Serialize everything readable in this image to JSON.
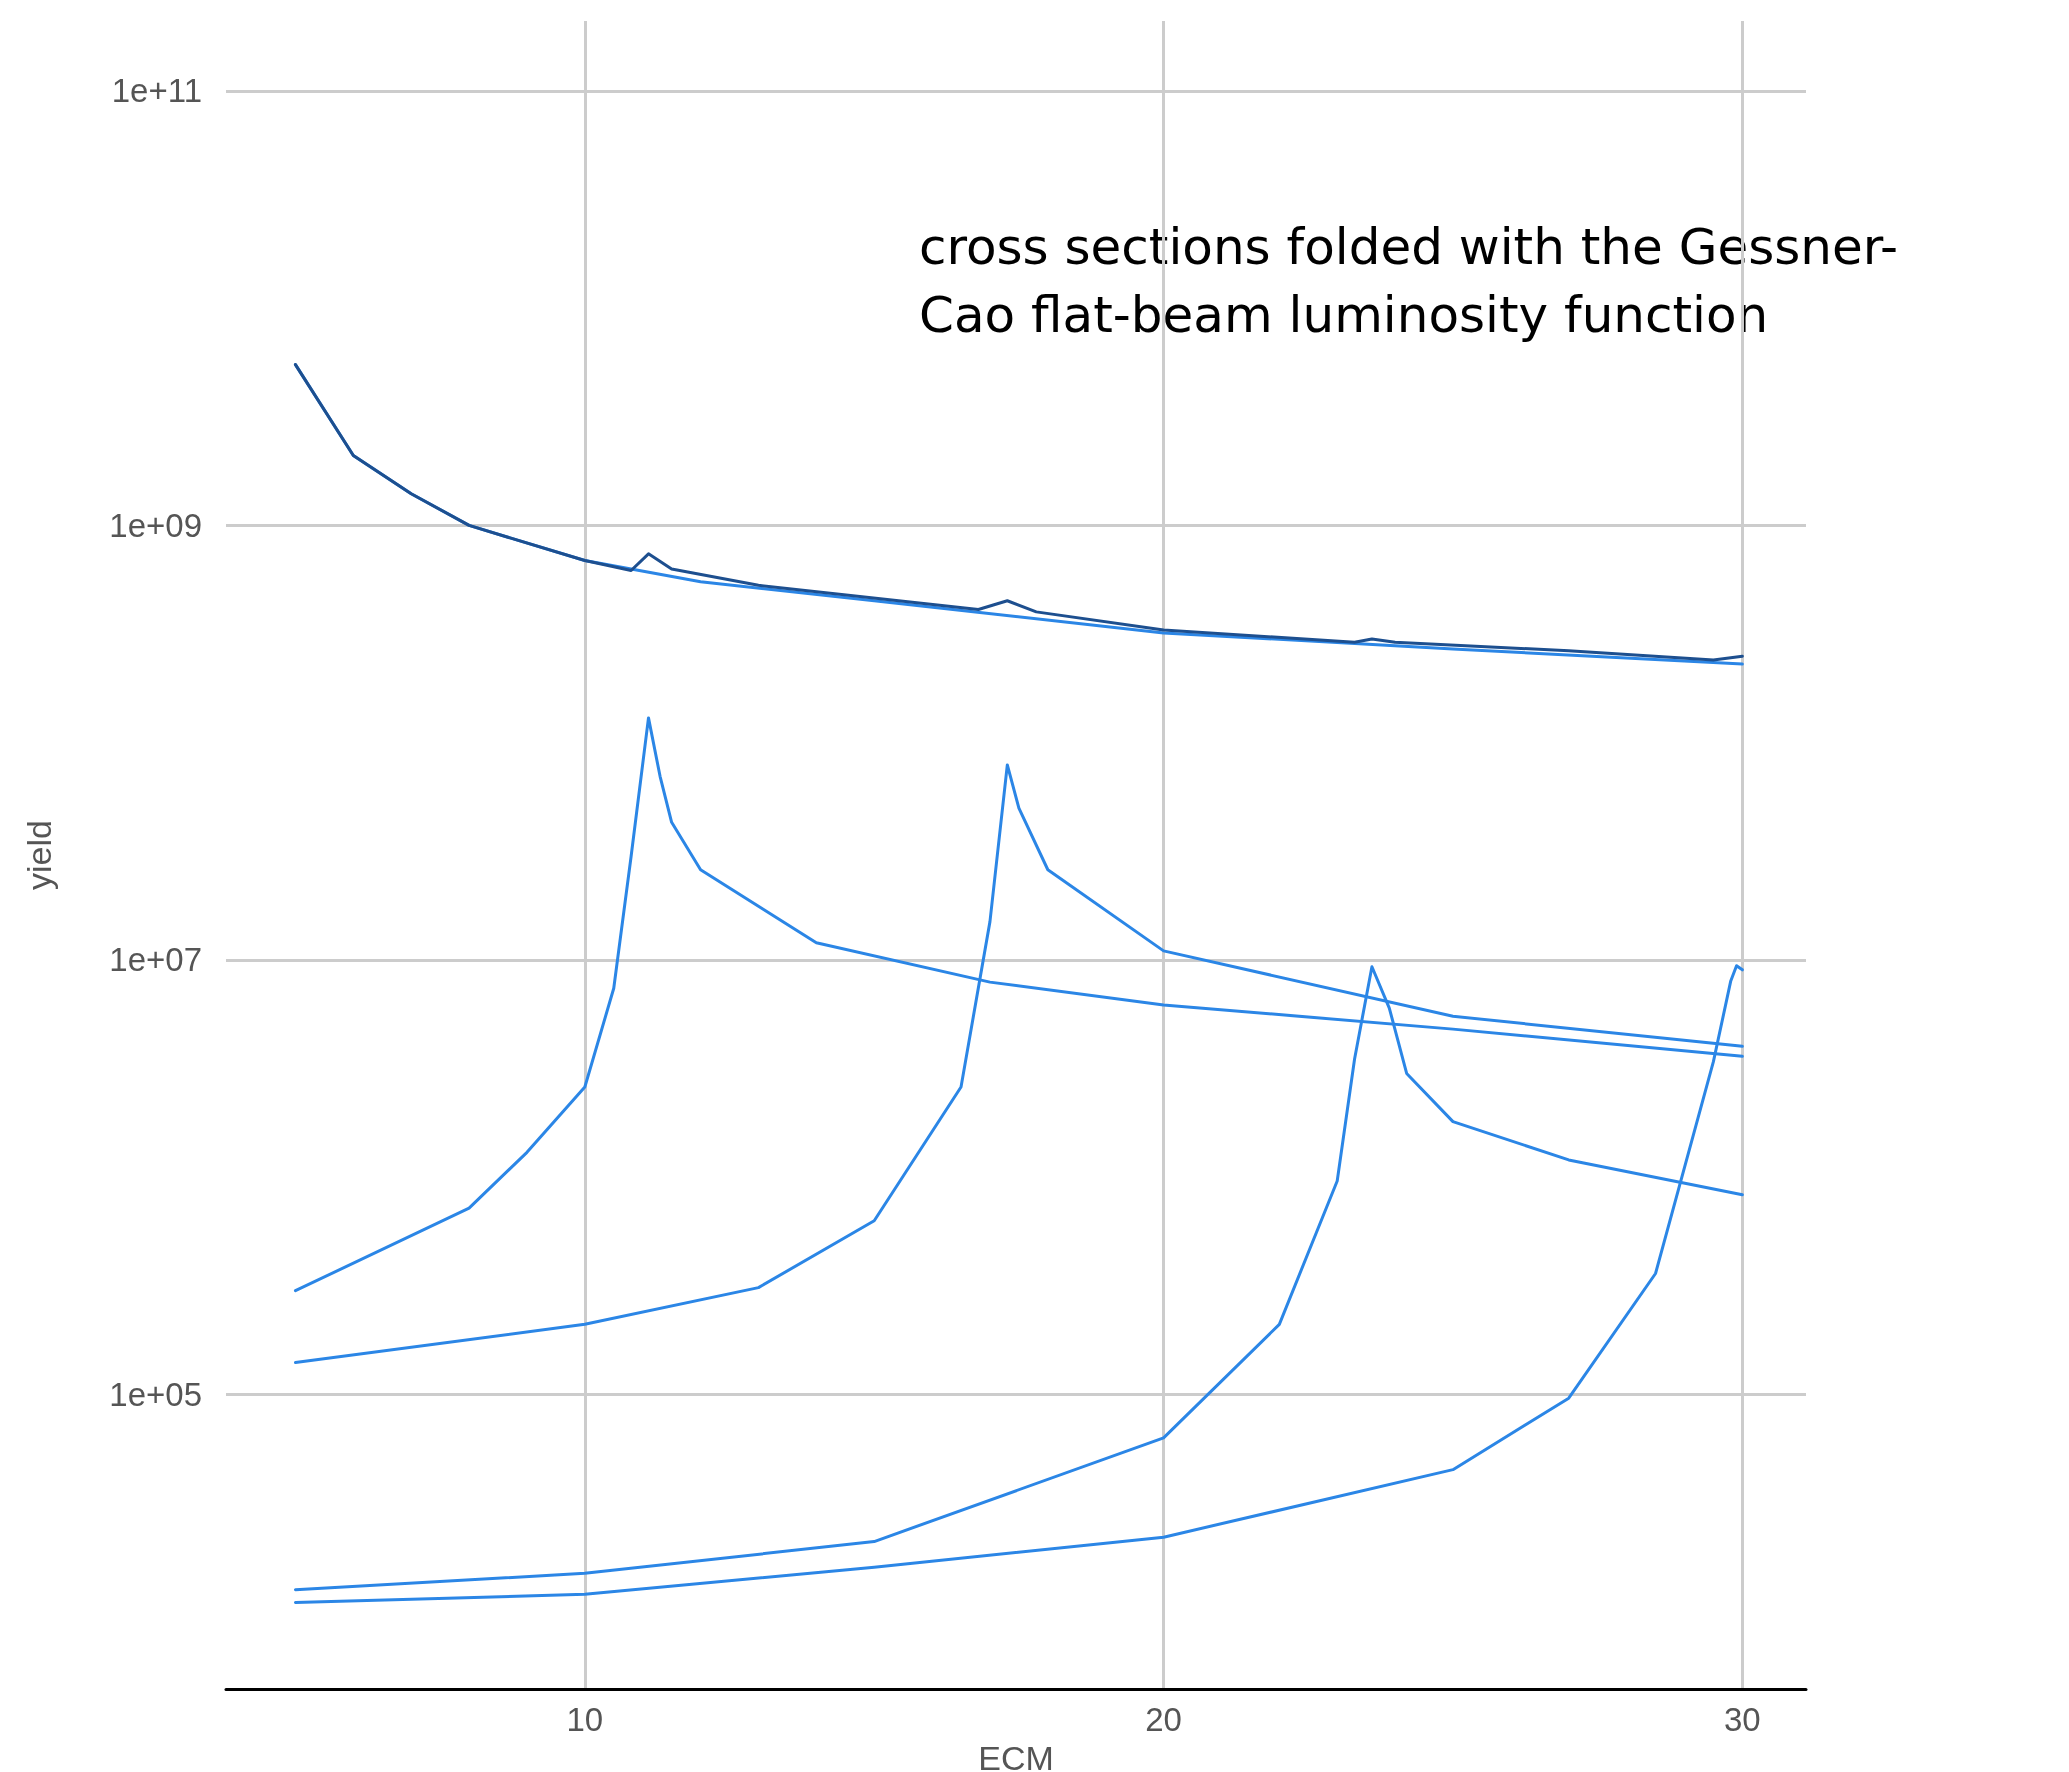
{
  "chart_data": {
    "type": "line",
    "xlabel": "ECM",
    "ylabel": "yield",
    "annotations": [
      "cross sections folded with the Gessner-\nCao flat-beam luminosity function"
    ],
    "log": "y",
    "grid": true,
    "marker": "none",
    "line_style": "solid",
    "xlim": [
      3.8,
      31.1
    ],
    "xticks": [
      10,
      20,
      30
    ],
    "ylim": [
      4400,
      210000000000
    ],
    "yticks": [
      {
        "value": 100000,
        "label": "1e+05"
      },
      {
        "value": 10000000,
        "label": "1e+07"
      },
      {
        "value": 1000000000,
        "label": "1e+09"
      },
      {
        "value": 100000000000,
        "label": "1e+11"
      }
    ],
    "series": [
      {
        "color": "#2b86e6",
        "x": [
          5,
          6,
          7,
          8,
          10,
          12,
          15,
          20,
          25,
          30
        ],
        "values": [
          5500000000,
          2100000000,
          1400000000,
          1000000000,
          690000000,
          550000000,
          450000000,
          320000000,
          270000000,
          230000000
        ]
      },
      {
        "color": "#1d4f8f",
        "x": [
          5,
          6,
          7,
          8,
          10,
          10.8,
          11.1,
          11.5,
          13,
          16.8,
          17.3,
          17.8,
          20,
          23.3,
          23.6,
          24,
          27,
          29.5,
          30
        ],
        "values": [
          5500000000,
          2100000000,
          1400000000,
          1000000000,
          690000000,
          620000000,
          740000000,
          630000000,
          530000000,
          410000000,
          450000000,
          400000000,
          330000000,
          290000000,
          300000000,
          290000000,
          265000000,
          240000000,
          250000000
        ]
      },
      {
        "color": "#2b86e6",
        "x": [
          5,
          8,
          9,
          10,
          10.5,
          10.8,
          11.1,
          11.3,
          11.5,
          12,
          14,
          17,
          20,
          25,
          30
        ],
        "values": [
          300000,
          720000,
          1300000,
          2600000,
          7400000,
          30000000,
          130000000,
          70000000,
          43000000,
          26000000,
          12000000,
          7900000,
          6200000,
          4800000,
          3600000
        ]
      },
      {
        "color": "#2b86e6",
        "x": [
          5,
          10,
          13,
          15,
          16.5,
          17,
          17.3,
          17.5,
          18,
          20,
          25,
          30
        ],
        "values": [
          140000,
          210000,
          310000,
          630000,
          2600000,
          15000000,
          79000000,
          50000000,
          26000000,
          11000000,
          5500000,
          4000000
        ]
      },
      {
        "color": "#2b86e6",
        "x": [
          5,
          10,
          15,
          20,
          22,
          23,
          23.3,
          23.6,
          23.9,
          24.2,
          25,
          27,
          30
        ],
        "values": [
          12600,
          15000,
          21000,
          63000,
          210000,
          960000,
          3500000,
          9300000,
          6000000,
          3000000,
          1800000,
          1200000,
          830000
        ]
      },
      {
        "color": "#2b86e6",
        "x": [
          5,
          10,
          15,
          20,
          25,
          27,
          28.5,
          29.5,
          29.8,
          29.9,
          30
        ],
        "values": [
          11000,
          12000,
          16000,
          22000,
          45000,
          96000,
          360000,
          3400000,
          8000000,
          9400000,
          9000000
        ]
      }
    ]
  }
}
